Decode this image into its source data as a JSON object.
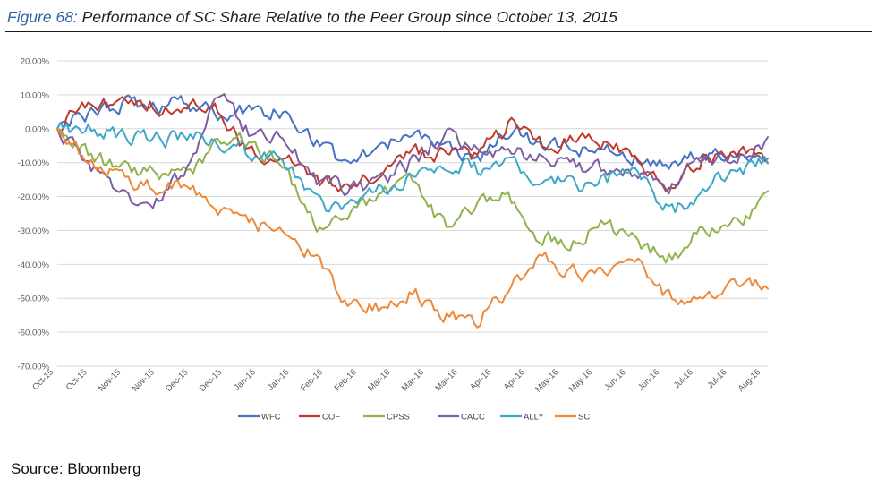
{
  "figure": {
    "number": "Figure 68:",
    "title": "Performance of SC Share Relative to the Peer Group since October 13, 2015",
    "source": "Source: Bloomberg"
  },
  "chart_data": {
    "type": "line",
    "title": "Performance of SC Share Relative to the Peer Group since October 13, 2015",
    "xlabel": "",
    "ylabel": "",
    "ylim": [
      -70,
      20
    ],
    "y_ticks": [
      "20.00%",
      "10.00%",
      "0.00%",
      "-10.00%",
      "-20.00%",
      "-30.00%",
      "-40.00%",
      "-50.00%",
      "-60.00%",
      "-70.00%"
    ],
    "x_ticks": [
      "Oct-15",
      "Oct-15",
      "Nov-15",
      "Nov-15",
      "Dec-15",
      "Dec-15",
      "Jan-16",
      "Jan-16",
      "Feb-16",
      "Feb-16",
      "Mar-16",
      "Mar-16",
      "Mar-16",
      "Apr-16",
      "Apr-16",
      "May-16",
      "May-16",
      "Jun-16",
      "Jun-16",
      "Jul-16",
      "Jul-16",
      "Aug-16"
    ],
    "grid": "horizontal",
    "legend_position": "bottom",
    "x": [
      "Oct-15",
      "Oct-15",
      "Nov-15",
      "Nov-15",
      "Dec-15",
      "Dec-15",
      "Jan-16",
      "Jan-16",
      "Feb-16",
      "Feb-16",
      "Mar-16",
      "Mar-16",
      "Mar-16",
      "Apr-16",
      "Apr-16",
      "May-16",
      "May-16",
      "Jun-16",
      "Jun-16",
      "Jul-16",
      "Jul-16",
      "Aug-16",
      "Aug-16"
    ],
    "series": [
      {
        "name": "WFC",
        "color": "#4472c4",
        "values": [
          0,
          5,
          7,
          6,
          8,
          3,
          5,
          5,
          -3,
          -12,
          -4,
          -2,
          -6,
          -9,
          0,
          -5,
          -6,
          -6,
          -8,
          -9,
          -9,
          -8,
          -8
        ]
      },
      {
        "name": "COF",
        "color": "#c0392b",
        "values": [
          0,
          8,
          7,
          7,
          7,
          5,
          -8,
          -8,
          -16,
          -18,
          -12,
          -7,
          -8,
          -8,
          2,
          -5,
          -4,
          -5,
          -10,
          -18,
          -8,
          -7,
          -8
        ]
      },
      {
        "name": "CPSS",
        "color": "#8fb24f",
        "values": [
          0,
          -8,
          -12,
          -12,
          -14,
          -3,
          -3,
          -12,
          -28,
          -25,
          -20,
          -15,
          -30,
          -23,
          -20,
          -32,
          -33,
          -28,
          -34,
          -38,
          -30,
          -28,
          -22
        ]
      },
      {
        "name": "CACC",
        "color": "#7d5fa3",
        "values": [
          0,
          -10,
          -20,
          -22,
          -12,
          10,
          -2,
          -3,
          -15,
          -18,
          -16,
          -10,
          -2,
          -6,
          -6,
          -8,
          -10,
          -13,
          -15,
          -16,
          -10,
          -7,
          -5
        ]
      },
      {
        "name": "ALLY",
        "color": "#3fa8c8",
        "values": [
          0,
          0,
          -2,
          -3,
          -3,
          -3,
          -8,
          -10,
          -23,
          -24,
          -18,
          -13,
          -10,
          -12,
          -11,
          -15,
          -17,
          -15,
          -13,
          -25,
          -18,
          -12,
          -10
        ]
      },
      {
        "name": "SC",
        "color": "#ed8a3a",
        "values": [
          0,
          -10,
          -15,
          -17,
          -18,
          -23,
          -27,
          -32,
          -38,
          -53,
          -52,
          -48,
          -55,
          -56,
          -48,
          -38,
          -43,
          -44,
          -40,
          -51,
          -52,
          -44,
          -45
        ]
      }
    ]
  }
}
